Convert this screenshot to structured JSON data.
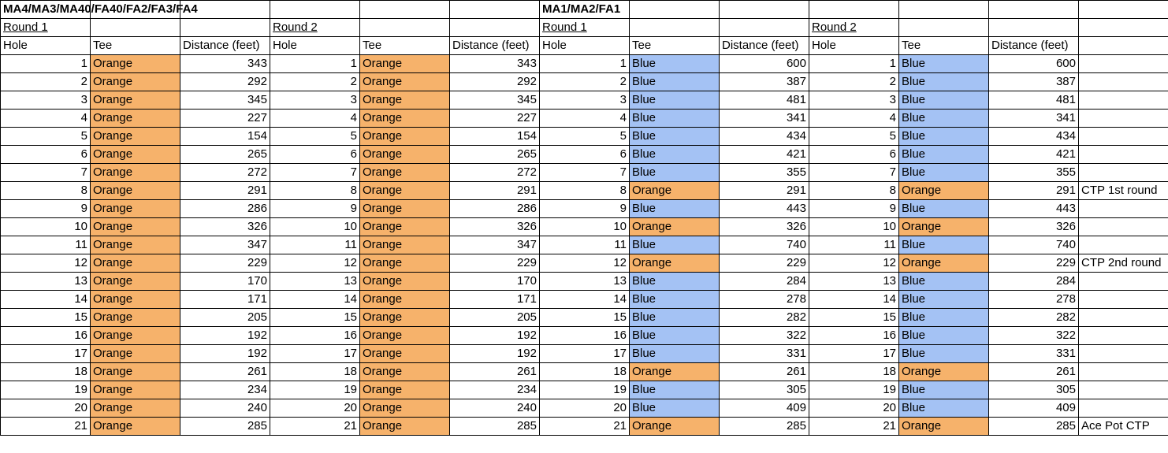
{
  "colors": {
    "Orange": "#f6b26b",
    "Blue": "#a4c2f4"
  },
  "sections": [
    {
      "title": "MA4/MA3/MA40/FA40/FA2/FA3/FA4",
      "rounds": [
        {
          "label": "Round 1"
        },
        {
          "label": "Round 2"
        }
      ],
      "headers": [
        "Hole",
        "Tee",
        "Distance (feet)"
      ],
      "rows": [
        {
          "hole": 1,
          "tee": "Orange",
          "distance": 343
        },
        {
          "hole": 2,
          "tee": "Orange",
          "distance": 292
        },
        {
          "hole": 3,
          "tee": "Orange",
          "distance": 345
        },
        {
          "hole": 4,
          "tee": "Orange",
          "distance": 227
        },
        {
          "hole": 5,
          "tee": "Orange",
          "distance": 154
        },
        {
          "hole": 6,
          "tee": "Orange",
          "distance": 265
        },
        {
          "hole": 7,
          "tee": "Orange",
          "distance": 272
        },
        {
          "hole": 8,
          "tee": "Orange",
          "distance": 291
        },
        {
          "hole": 9,
          "tee": "Orange",
          "distance": 286
        },
        {
          "hole": 10,
          "tee": "Orange",
          "distance": 326
        },
        {
          "hole": 11,
          "tee": "Orange",
          "distance": 347
        },
        {
          "hole": 12,
          "tee": "Orange",
          "distance": 229
        },
        {
          "hole": 13,
          "tee": "Orange",
          "distance": 170
        },
        {
          "hole": 14,
          "tee": "Orange",
          "distance": 171
        },
        {
          "hole": 15,
          "tee": "Orange",
          "distance": 205
        },
        {
          "hole": 16,
          "tee": "Orange",
          "distance": 192
        },
        {
          "hole": 17,
          "tee": "Orange",
          "distance": 192
        },
        {
          "hole": 18,
          "tee": "Orange",
          "distance": 261
        },
        {
          "hole": 19,
          "tee": "Orange",
          "distance": 234
        },
        {
          "hole": 20,
          "tee": "Orange",
          "distance": 240
        },
        {
          "hole": 21,
          "tee": "Orange",
          "distance": 285
        }
      ]
    },
    {
      "title": "MA1/MA2/FA1",
      "rounds": [
        {
          "label": "Round 1"
        },
        {
          "label": "Round 2"
        }
      ],
      "headers": [
        "Hole",
        "Tee",
        "Distance (feet)"
      ],
      "rows": [
        {
          "hole": 1,
          "tee": "Blue",
          "distance": 600
        },
        {
          "hole": 2,
          "tee": "Blue",
          "distance": 387
        },
        {
          "hole": 3,
          "tee": "Blue",
          "distance": 481
        },
        {
          "hole": 4,
          "tee": "Blue",
          "distance": 341
        },
        {
          "hole": 5,
          "tee": "Blue",
          "distance": 434
        },
        {
          "hole": 6,
          "tee": "Blue",
          "distance": 421
        },
        {
          "hole": 7,
          "tee": "Blue",
          "distance": 355
        },
        {
          "hole": 8,
          "tee": "Orange",
          "distance": 291
        },
        {
          "hole": 9,
          "tee": "Blue",
          "distance": 443
        },
        {
          "hole": 10,
          "tee": "Orange",
          "distance": 326
        },
        {
          "hole": 11,
          "tee": "Blue",
          "distance": 740
        },
        {
          "hole": 12,
          "tee": "Orange",
          "distance": 229
        },
        {
          "hole": 13,
          "tee": "Blue",
          "distance": 284
        },
        {
          "hole": 14,
          "tee": "Blue",
          "distance": 278
        },
        {
          "hole": 15,
          "tee": "Blue",
          "distance": 282
        },
        {
          "hole": 16,
          "tee": "Blue",
          "distance": 322
        },
        {
          "hole": 17,
          "tee": "Blue",
          "distance": 331
        },
        {
          "hole": 18,
          "tee": "Orange",
          "distance": 261
        },
        {
          "hole": 19,
          "tee": "Blue",
          "distance": 305
        },
        {
          "hole": 20,
          "tee": "Blue",
          "distance": 409
        },
        {
          "hole": 21,
          "tee": "Orange",
          "distance": 285
        }
      ]
    }
  ],
  "notes": [
    "",
    "",
    "",
    "",
    "",
    "",
    "",
    "CTP 1st round",
    "",
    "",
    "",
    "CTP 2nd round",
    "",
    "",
    "",
    "",
    "",
    "",
    "",
    "",
    "Ace Pot CTP"
  ]
}
